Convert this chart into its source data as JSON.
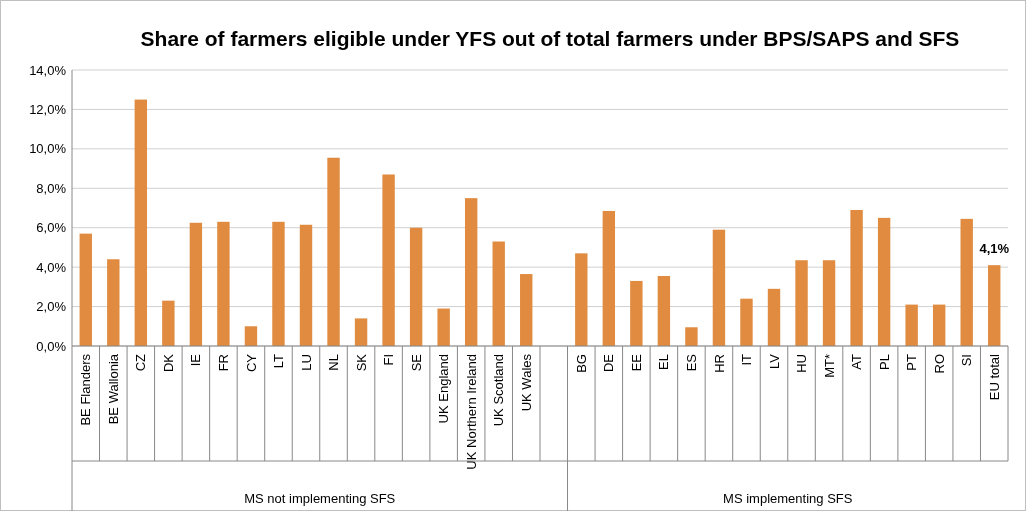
{
  "chart_data": {
    "type": "bar",
    "title": "Share of farmers eligible under YFS out of total farmers under BPS/SAPS and SFS",
    "categories": [
      "BE Flanders",
      "BE Wallonia",
      "CZ",
      "DK",
      "IE",
      "FR",
      "CY",
      "LT",
      "LU",
      "NL",
      "SK",
      "FI",
      "SE",
      "UK England",
      "UK Northern Ireland",
      "UK Scotland",
      "UK Wales",
      null,
      "BG",
      "DE",
      "EE",
      "EL",
      "ES",
      "HR",
      "IT",
      "LV",
      "HU",
      "MT*",
      "AT",
      "PL",
      "PT",
      "RO",
      "SI",
      "EU total"
    ],
    "values": [
      5.7,
      4.4,
      12.5,
      2.3,
      6.25,
      6.3,
      1.0,
      6.3,
      6.15,
      9.55,
      1.4,
      8.7,
      6.0,
      1.9,
      7.5,
      5.3,
      3.65,
      null,
      4.7,
      6.85,
      3.3,
      3.55,
      0.95,
      5.9,
      2.4,
      2.9,
      4.35,
      4.35,
      6.9,
      6.5,
      2.1,
      2.1,
      6.45,
      4.1
    ],
    "value_labels": [
      null,
      null,
      null,
      null,
      null,
      null,
      null,
      null,
      null,
      null,
      null,
      null,
      null,
      null,
      null,
      null,
      null,
      null,
      null,
      null,
      null,
      null,
      null,
      null,
      null,
      null,
      null,
      null,
      null,
      null,
      null,
      null,
      null,
      "4,1%"
    ],
    "color": "#e08b3f",
    "ylim": [
      0,
      14
    ],
    "yticks": [
      {
        "value": 0,
        "label": "0,0%"
      },
      {
        "value": 2,
        "label": "2,0%"
      },
      {
        "value": 4,
        "label": "4,0%"
      },
      {
        "value": 6,
        "label": "6,0%"
      },
      {
        "value": 8,
        "label": "8,0%"
      },
      {
        "value": 10,
        "label": "10,0%"
      },
      {
        "value": 12,
        "label": "12,0%"
      },
      {
        "value": 14,
        "label": "14,0%"
      }
    ],
    "grid": "y",
    "annotations": [
      "MS not implementing SFS",
      "MS implementing SFS"
    ]
  }
}
